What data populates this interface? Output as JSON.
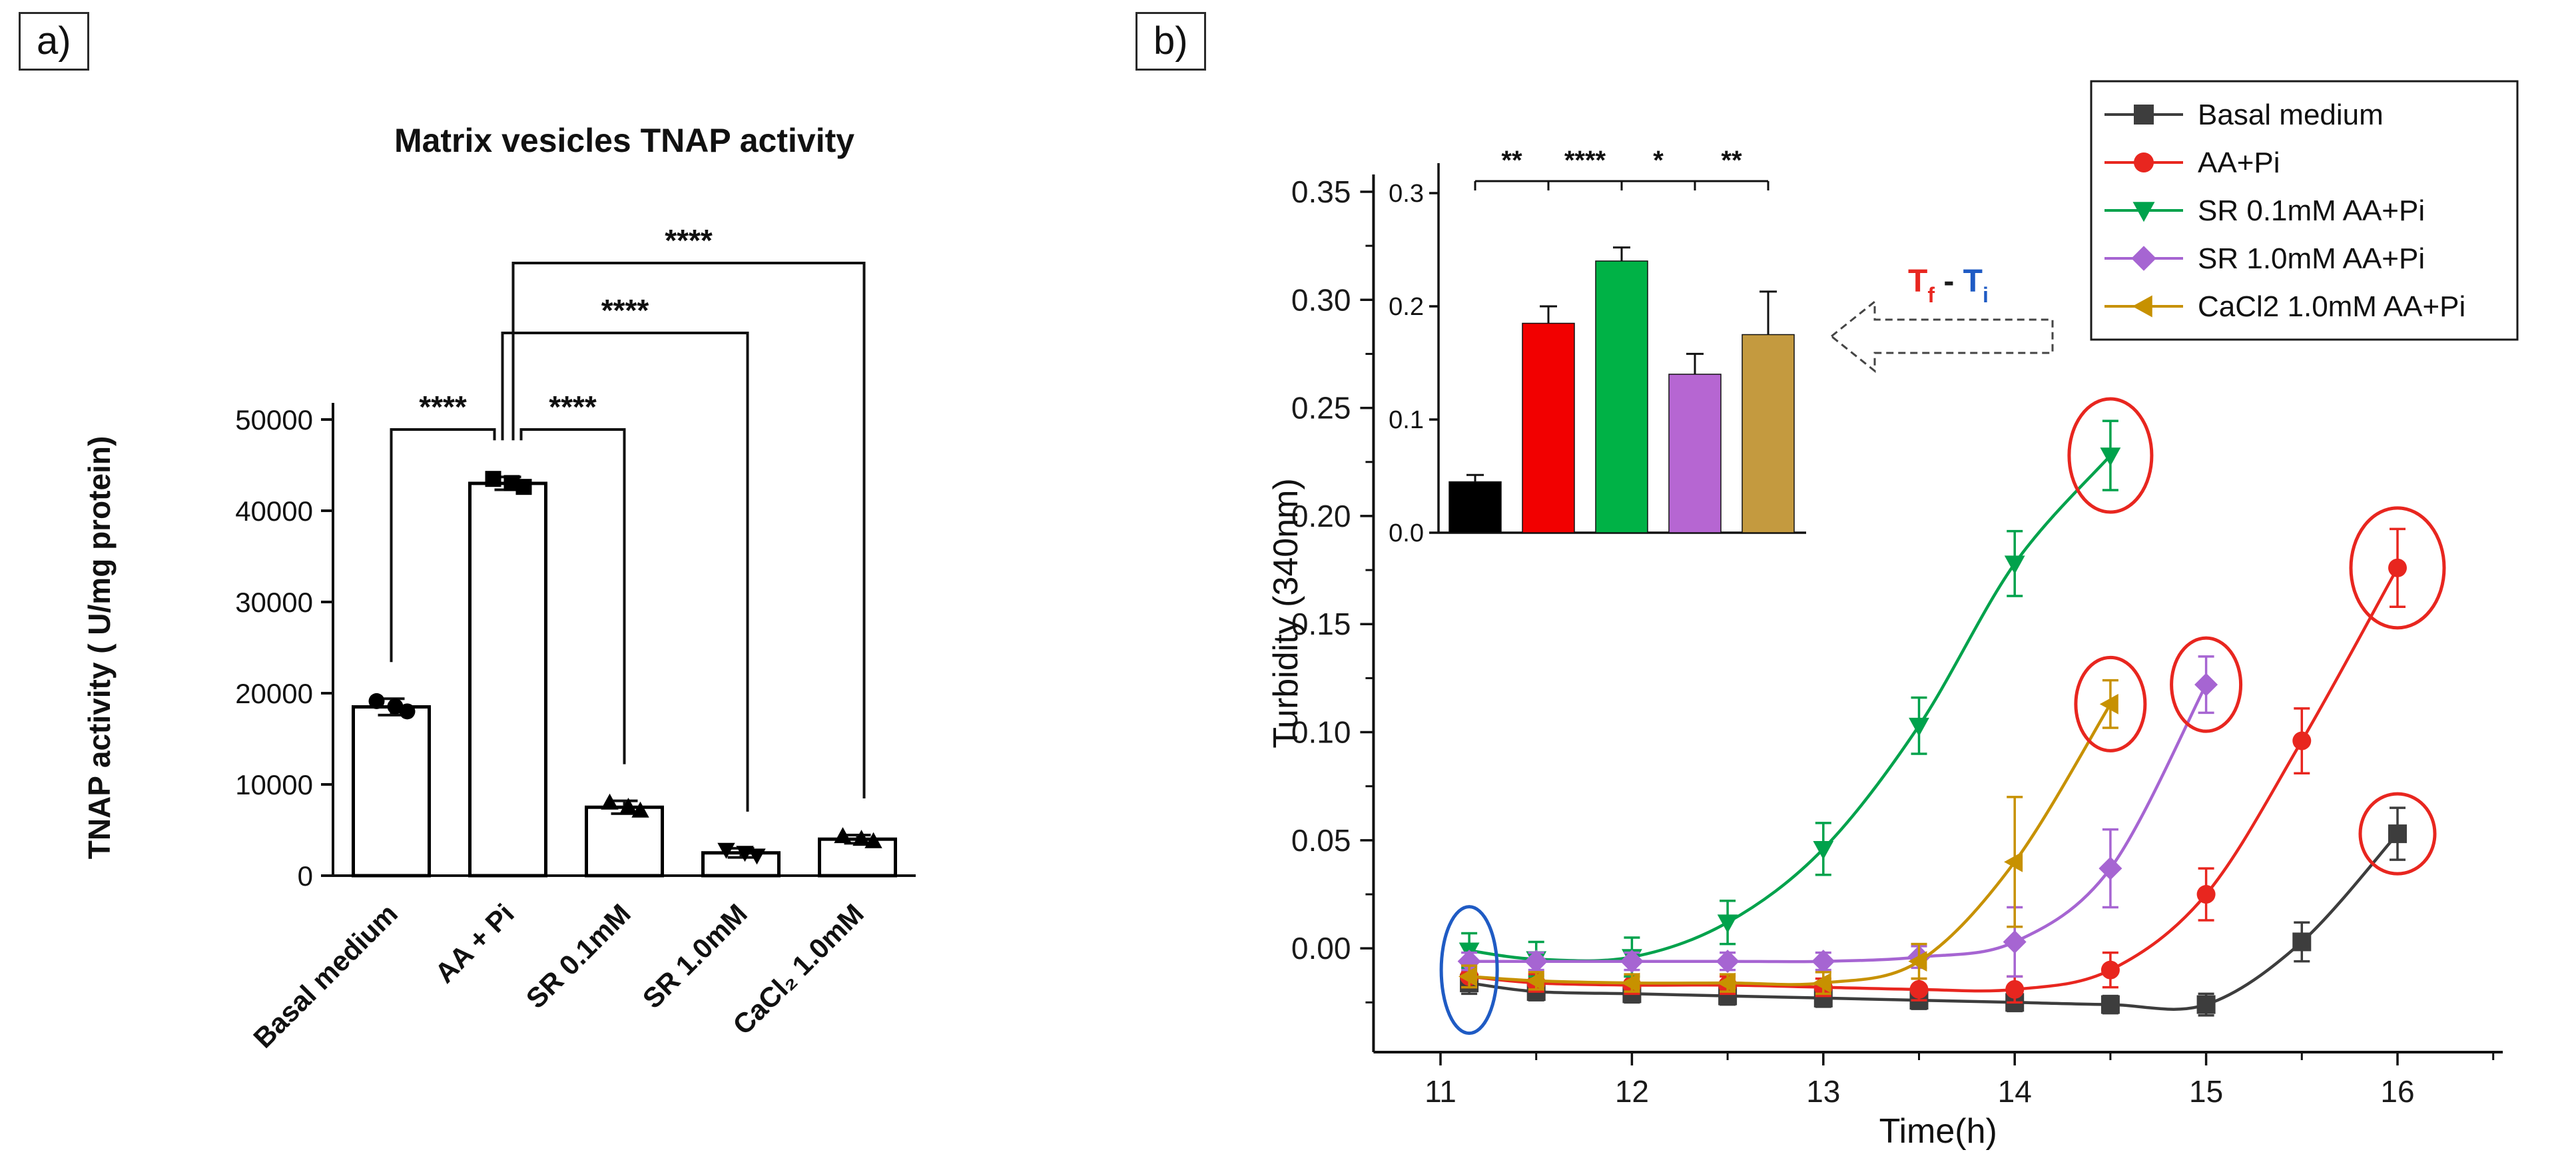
{
  "panels": {
    "a": {
      "label": "a)"
    },
    "b": {
      "label": "b)"
    }
  },
  "chart_data": [
    {
      "id": "tnap_activity",
      "type": "bar",
      "title": "Matrix vesicles TNAP activity",
      "xlabel": "",
      "ylabel": "TNAP activity ( U/mg protein)",
      "categories": [
        "Basal medium",
        "AA + Pi",
        "SR 0.1mM",
        "SR 1.0mM",
        "CaCl₂ 1.0mM"
      ],
      "values": [
        18500,
        43000,
        7500,
        2500,
        4000
      ],
      "errors": [
        900,
        700,
        700,
        500,
        450
      ],
      "point_markers": [
        "circle",
        "square",
        "triangle-up",
        "triangle-down",
        "triangle-up"
      ],
      "ylim": [
        0,
        50000
      ],
      "yticks": [
        0,
        10000,
        20000,
        30000,
        40000,
        50000
      ],
      "bar_fill": "#ffffff",
      "bar_stroke": "#000000",
      "significance": [
        {
          "from": 0,
          "to": 1,
          "label": "****",
          "level": 0
        },
        {
          "from": 1,
          "to": 2,
          "label": "****",
          "level": 0
        },
        {
          "from": 1,
          "to": 3,
          "label": "****",
          "level": 1
        },
        {
          "from": 1,
          "to": 4,
          "label": "****",
          "level": 2
        }
      ]
    },
    {
      "id": "turbidity_kinetics",
      "type": "line",
      "xlabel": "Time(h)",
      "ylabel": "Turbidity (340nm)",
      "xlim": [
        10.65,
        16.55
      ],
      "ylim": [
        -0.048,
        0.358
      ],
      "xticks": [
        11,
        12,
        13,
        14,
        15,
        16
      ],
      "yticks": [
        0.0,
        0.05,
        0.1,
        0.15,
        0.2,
        0.25,
        0.3,
        0.35
      ],
      "series": [
        {
          "name": "Basal medium",
          "color": "#3d3d3d",
          "marker": "square",
          "x": [
            11.15,
            11.5,
            12,
            12.5,
            13,
            13.5,
            14,
            14.5,
            15,
            15.5,
            16
          ],
          "y": [
            -0.016,
            -0.02,
            -0.021,
            -0.022,
            -0.023,
            -0.024,
            -0.025,
            -0.026,
            -0.026,
            0.003,
            0.053
          ],
          "err": [
            0.005,
            0.004,
            0.004,
            0.004,
            0.004,
            0.004,
            0.004,
            0.004,
            0.005,
            0.009,
            0.012
          ]
        },
        {
          "name": "AA+Pi",
          "color": "#e8261f",
          "marker": "circle",
          "x": [
            11.15,
            11.5,
            12,
            12.5,
            13,
            13.5,
            14,
            14.5,
            15,
            15.5,
            16
          ],
          "y": [
            -0.013,
            -0.016,
            -0.017,
            -0.017,
            -0.018,
            -0.019,
            -0.019,
            -0.01,
            0.025,
            0.096,
            0.176
          ],
          "err": [
            0.005,
            0.004,
            0.004,
            0.004,
            0.004,
            0.005,
            0.006,
            0.008,
            0.012,
            0.015,
            0.018
          ]
        },
        {
          "name": "SR 0.1mM AA+Pi",
          "color": "#00a24c",
          "marker": "triangle-down",
          "x": [
            11.15,
            11.5,
            12,
            12.5,
            13,
            13.5,
            14,
            14.5
          ],
          "y": [
            -0.001,
            -0.005,
            -0.004,
            0.012,
            0.046,
            0.103,
            0.178,
            0.228
          ],
          "err": [
            0.008,
            0.008,
            0.009,
            0.01,
            0.012,
            0.013,
            0.015,
            0.016
          ]
        },
        {
          "name": "SR 1.0mM AA+Pi",
          "color": "#a665d2",
          "marker": "diamond",
          "x": [
            11.15,
            11.5,
            12,
            12.5,
            13,
            13.5,
            14,
            14.5,
            15
          ],
          "y": [
            -0.006,
            -0.006,
            -0.006,
            -0.006,
            -0.006,
            -0.004,
            0.003,
            0.037,
            0.122
          ],
          "err": [
            0.004,
            0.004,
            0.004,
            0.004,
            0.004,
            0.005,
            0.016,
            0.018,
            0.013
          ]
        },
        {
          "name": "CaCl2 1.0mM AA+Pi",
          "color": "#c79100",
          "marker": "triangle-left",
          "x": [
            11.15,
            11.5,
            12,
            12.5,
            13,
            13.5,
            14,
            14.5
          ],
          "y": [
            -0.013,
            -0.015,
            -0.016,
            -0.016,
            -0.016,
            -0.006,
            0.04,
            0.113
          ],
          "err": [
            0.005,
            0.004,
            0.004,
            0.004,
            0.005,
            0.008,
            0.03,
            0.011
          ]
        }
      ],
      "highlight_ellipses": [
        {
          "color": "#e8261f",
          "x": 14.5,
          "y": 0.228,
          "rx": 62,
          "ry": 85
        },
        {
          "color": "#e8261f",
          "x": 16,
          "y": 0.176,
          "rx": 70,
          "ry": 90
        },
        {
          "color": "#e8261f",
          "x": 15,
          "y": 0.122,
          "rx": 52,
          "ry": 70
        },
        {
          "color": "#e8261f",
          "x": 14.5,
          "y": 0.113,
          "rx": 52,
          "ry": 70
        },
        {
          "color": "#e8261f",
          "x": 16,
          "y": 0.053,
          "rx": 56,
          "ry": 60
        },
        {
          "color": "#1f5bc4",
          "x": 11.15,
          "y": -0.01,
          "rx": 42,
          "ry": 95
        }
      ]
    },
    {
      "id": "turbidity_delta_inset",
      "type": "bar",
      "title": "",
      "xlabel": "",
      "ylabel": "",
      "categories": [
        "Basal medium",
        "AA+Pi",
        "SR 0.1mM AA+Pi",
        "SR 1.0mM AA+Pi",
        "CaCl2 1.0mM AA+Pi"
      ],
      "values": [
        0.045,
        0.185,
        0.24,
        0.14,
        0.175
      ],
      "errors": [
        0.006,
        0.015,
        0.012,
        0.018,
        0.038
      ],
      "colors": [
        "#000000",
        "#f20000",
        "#00b246",
        "#b666d2",
        "#c49a3f"
      ],
      "ylim": [
        0,
        0.3
      ],
      "yticks": [
        0.0,
        0.1,
        0.2,
        0.3
      ],
      "significance_labels": [
        "**",
        "****",
        "*",
        "**"
      ]
    }
  ],
  "legend": {
    "entries": [
      {
        "label": "Basal medium",
        "color": "#3d3d3d",
        "marker": "square"
      },
      {
        "label": "AA+Pi",
        "color": "#e8261f",
        "marker": "circle"
      },
      {
        "label": "SR 0.1mM AA+Pi",
        "color": "#00a24c",
        "marker": "triangle-down"
      },
      {
        "label": "SR 1.0mM AA+Pi",
        "color": "#a665d2",
        "marker": "diamond"
      },
      {
        "label": "CaCl2 1.0mM AA+Pi",
        "color": "#c79100",
        "marker": "triangle-left"
      }
    ]
  },
  "annotation": {
    "segments": [
      {
        "text": "T",
        "sub": "f",
        "color": "#e8261f"
      },
      {
        "text": " - ",
        "sub": "",
        "color": "#1a1a1a"
      },
      {
        "text": "T",
        "sub": "i",
        "color": "#1f5bc4"
      }
    ]
  }
}
